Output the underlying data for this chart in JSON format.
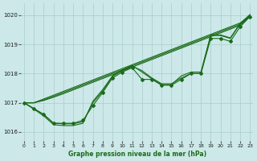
{
  "xlabel": "Graphe pression niveau de la mer (hPa)",
  "ylim": [
    1015.7,
    1020.4
  ],
  "xlim": [
    -0.3,
    23.3
  ],
  "yticks": [
    1016,
    1017,
    1018,
    1019,
    1020
  ],
  "xticks": [
    0,
    1,
    2,
    3,
    4,
    5,
    6,
    7,
    8,
    9,
    10,
    11,
    12,
    13,
    14,
    15,
    16,
    17,
    18,
    19,
    20,
    21,
    22,
    23
  ],
  "bg_color": "#cce8e8",
  "grid_color": "#aacccc",
  "line_color": "#1a6b1a",
  "series_with_markers": [
    [
      1017.0,
      1016.8,
      1016.6,
      1016.3,
      1016.3,
      1016.3,
      1016.4,
      1016.9,
      1017.35,
      1017.85,
      1018.05,
      1018.2,
      1017.8,
      1017.8,
      1017.6,
      1017.6,
      1017.8,
      1018.0,
      1018.0,
      1019.2,
      1019.2,
      1019.1,
      1019.6,
      1019.95
    ]
  ],
  "series_straight": [
    [
      1017.0,
      1017.0,
      1017.13,
      1017.26,
      1017.39,
      1017.52,
      1017.65,
      1017.78,
      1017.91,
      1018.04,
      1018.17,
      1018.3,
      1018.43,
      1018.56,
      1018.69,
      1018.82,
      1018.95,
      1019.08,
      1019.21,
      1019.34,
      1019.47,
      1019.6,
      1019.73,
      1019.95
    ],
    [
      1017.0,
      1017.0,
      1017.1,
      1017.22,
      1017.35,
      1017.48,
      1017.61,
      1017.74,
      1017.87,
      1018.0,
      1018.13,
      1018.26,
      1018.39,
      1018.52,
      1018.65,
      1018.78,
      1018.91,
      1019.04,
      1019.17,
      1019.3,
      1019.43,
      1019.56,
      1019.69,
      1019.95
    ],
    [
      1017.0,
      1017.0,
      1017.08,
      1017.19,
      1017.31,
      1017.44,
      1017.57,
      1017.7,
      1017.83,
      1017.96,
      1018.09,
      1018.22,
      1018.35,
      1018.48,
      1018.61,
      1018.74,
      1018.87,
      1019.0,
      1019.13,
      1019.26,
      1019.39,
      1019.52,
      1019.65,
      1019.95
    ]
  ],
  "series_dip": [
    [
      1017.0,
      1016.8,
      1016.6,
      1016.3,
      1016.28,
      1016.28,
      1016.35,
      1017.0,
      1017.4,
      1017.9,
      1018.1,
      1018.25,
      1018.1,
      1017.85,
      1017.65,
      1017.65,
      1017.85,
      1018.0,
      1018.0,
      1019.3,
      1019.3,
      1019.2,
      1019.7,
      1020.0
    ],
    [
      1017.0,
      1016.78,
      1016.55,
      1016.25,
      1016.22,
      1016.22,
      1016.3,
      1017.05,
      1017.45,
      1017.92,
      1018.12,
      1018.28,
      1018.05,
      1017.82,
      1017.62,
      1017.62,
      1017.92,
      1018.05,
      1018.05,
      1019.32,
      1019.32,
      1019.22,
      1019.72,
      1020.02
    ]
  ]
}
